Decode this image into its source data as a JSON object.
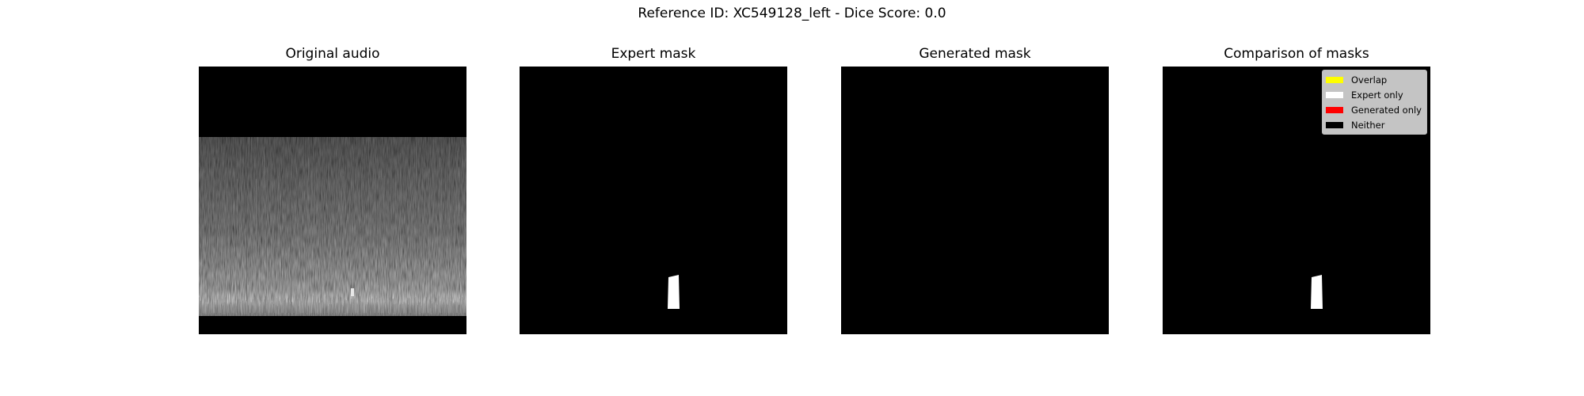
{
  "figure": {
    "title": "Reference ID: XC549128_left - Dice Score: 0.0"
  },
  "panels": [
    {
      "title": "Original audio"
    },
    {
      "title": "Expert mask"
    },
    {
      "title": "Generated mask"
    },
    {
      "title": "Comparison of masks"
    }
  ],
  "chart_data": [
    {
      "type": "heatmap",
      "title": "Original audio",
      "colormap": "gray",
      "content": "spectrogram"
    },
    {
      "type": "heatmap",
      "title": "Expert mask",
      "colormap": "binary",
      "mask": "white"
    },
    {
      "type": "heatmap",
      "title": "Generated mask",
      "colormap": "binary",
      "mask": "none"
    },
    {
      "type": "heatmap",
      "title": "Comparison of masks",
      "legend": {
        "placement": "top-right",
        "entries": [
          {
            "label": "Overlap",
            "color": "#ffff00"
          },
          {
            "label": "Expert only",
            "color": "#ffffff"
          },
          {
            "label": "Generated only",
            "color": "#ff0000"
          },
          {
            "label": "Neither",
            "color": "#000000"
          }
        ]
      }
    }
  ]
}
